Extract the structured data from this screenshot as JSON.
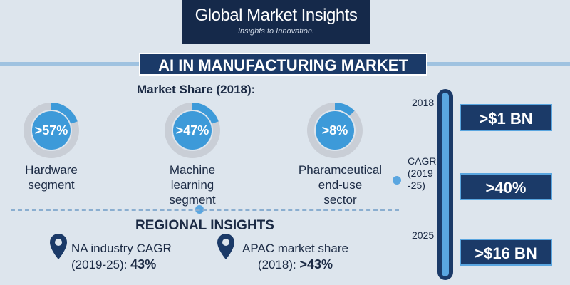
{
  "header": {
    "brand": "Global Market Insights",
    "tagline": "Insights to Innovation."
  },
  "title": "AI IN MANUFACTURING MARKET",
  "market_share": {
    "heading": "Market Share (2018):",
    "items": [
      {
        "value_label": ">57%",
        "lines": [
          "Hardware",
          "segment"
        ]
      },
      {
        "value_label": ">47%",
        "lines": [
          "Machine",
          "learning",
          "segment"
        ]
      },
      {
        "value_label": ">8%",
        "lines": [
          "Pharamceutical",
          "end-use",
          "sector"
        ]
      }
    ]
  },
  "regional": {
    "heading": "REGIONAL INSIGHTS",
    "items": [
      {
        "line1": "NA industry CAGR",
        "line2": "(2019-25):",
        "figure": "43%"
      },
      {
        "line1": "APAC market share",
        "line2": "(2018):",
        "figure": ">43%"
      }
    ]
  },
  "timeline": [
    {
      "lines": [
        "2018"
      ],
      "figure": ">$1 BN"
    },
    {
      "lines": [
        "CAGR",
        "(2019",
        "-25)"
      ],
      "figure": ">40%"
    },
    {
      "lines": [
        "2025"
      ],
      "figure": ">$16 BN"
    }
  ]
}
